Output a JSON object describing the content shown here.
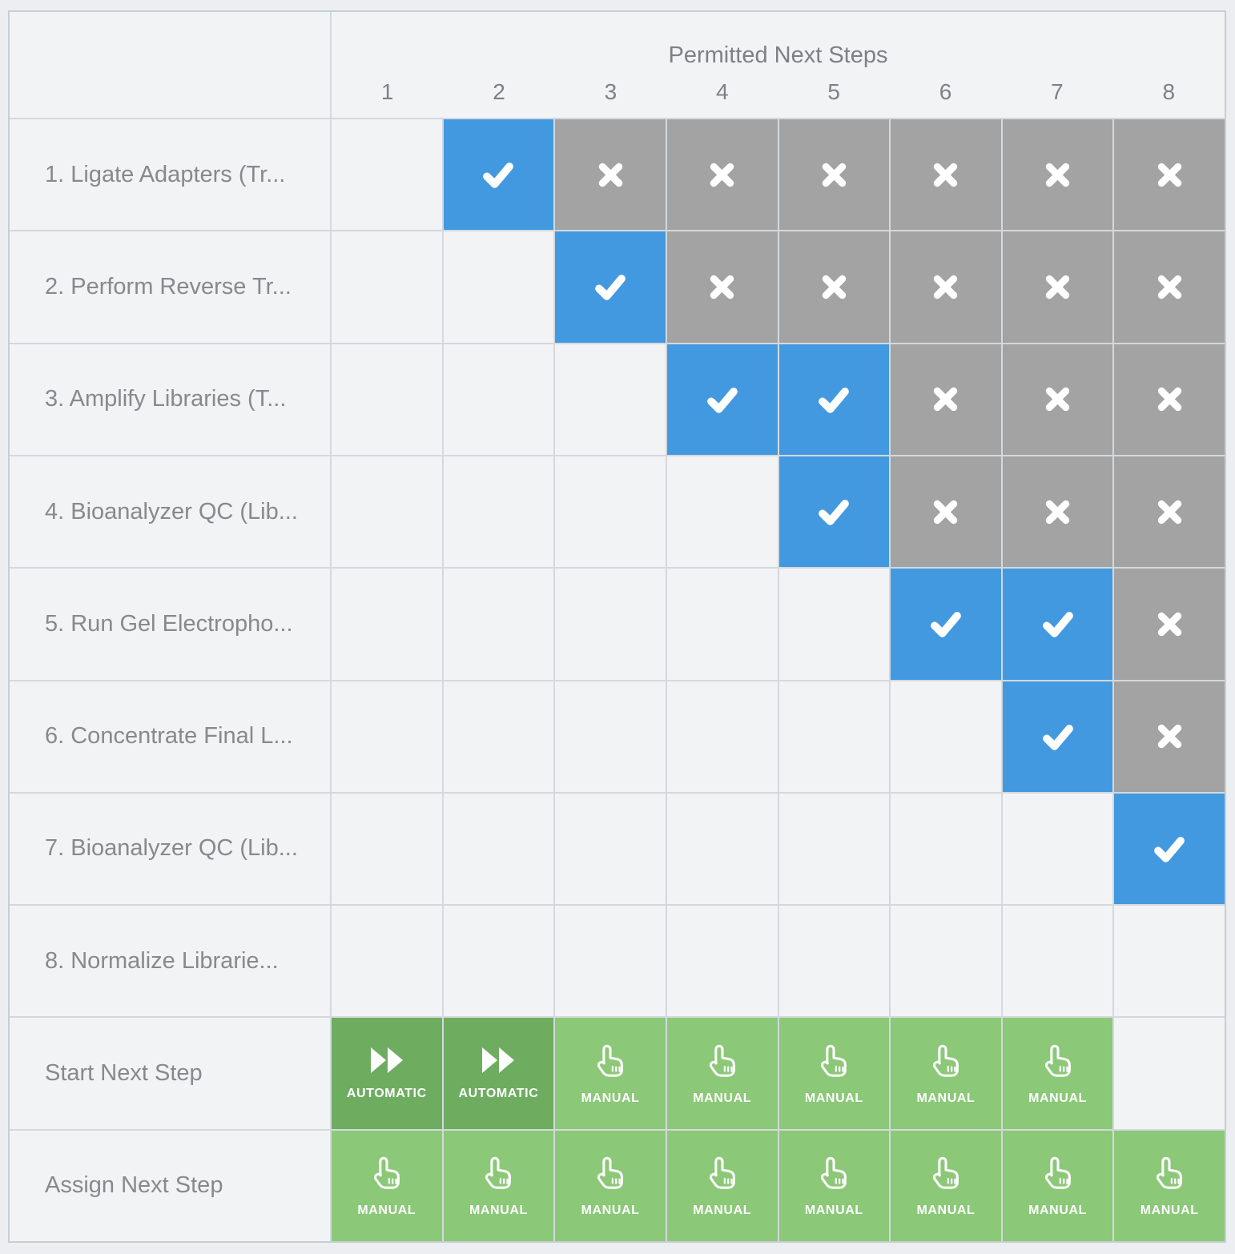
{
  "header": {
    "title": "Permitted Next Steps",
    "columns": [
      "1",
      "2",
      "3",
      "4",
      "5",
      "6",
      "7",
      "8"
    ]
  },
  "matrix": {
    "rows": [
      {
        "label": "1. Ligate Adapters (Tr...",
        "cells": [
          "empty",
          "allowed",
          "blocked",
          "blocked",
          "blocked",
          "blocked",
          "blocked",
          "blocked"
        ]
      },
      {
        "label": "2. Perform Reverse Tr...",
        "cells": [
          "empty",
          "empty",
          "allowed",
          "blocked",
          "blocked",
          "blocked",
          "blocked",
          "blocked"
        ]
      },
      {
        "label": "3. Amplify Libraries (T...",
        "cells": [
          "empty",
          "empty",
          "empty",
          "allowed",
          "allowed",
          "blocked",
          "blocked",
          "blocked"
        ]
      },
      {
        "label": "4. Bioanalyzer QC (Lib...",
        "cells": [
          "empty",
          "empty",
          "empty",
          "empty",
          "allowed",
          "blocked",
          "blocked",
          "blocked"
        ]
      },
      {
        "label": "5. Run Gel Electropho...",
        "cells": [
          "empty",
          "empty",
          "empty",
          "empty",
          "empty",
          "allowed",
          "allowed",
          "blocked"
        ]
      },
      {
        "label": "6. Concentrate Final L...",
        "cells": [
          "empty",
          "empty",
          "empty",
          "empty",
          "empty",
          "empty",
          "allowed",
          "blocked"
        ]
      },
      {
        "label": "7. Bioanalyzer QC (Lib...",
        "cells": [
          "empty",
          "empty",
          "empty",
          "empty",
          "empty",
          "empty",
          "empty",
          "allowed"
        ]
      },
      {
        "label": "8. Normalize Librarie...",
        "cells": [
          "empty",
          "empty",
          "empty",
          "empty",
          "empty",
          "empty",
          "empty",
          "empty"
        ]
      }
    ]
  },
  "actions": {
    "start": {
      "label": "Start Next Step",
      "cells": [
        "automatic",
        "automatic",
        "manual",
        "manual",
        "manual",
        "manual",
        "manual",
        "empty"
      ]
    },
    "assign": {
      "label": "Assign Next Step",
      "cells": [
        "manual",
        "manual",
        "manual",
        "manual",
        "manual",
        "manual",
        "manual",
        "manual"
      ]
    }
  },
  "labels": {
    "automatic": "AUTOMATIC",
    "manual": "MANUAL"
  },
  "colors": {
    "allowed": "#4399DF",
    "blocked": "#A3A3A3",
    "automatic": "#6EAD60",
    "manual": "#8BC878"
  }
}
